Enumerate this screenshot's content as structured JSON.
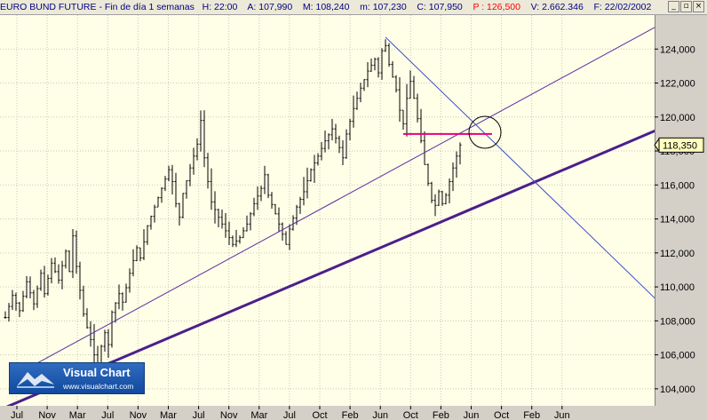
{
  "header": {
    "instrument": "EURO BUND FUTURE",
    "period": "Fin de día 1 semanas",
    "h": "H: 22:00",
    "a": "A: 107,990",
    "m": "M: 108,240",
    "mn": "m: 107,230",
    "c": "C: 107,950",
    "p": "P : 126,500",
    "v": "V: 2.662.346",
    "f": "F: 22/02/2002",
    "colors": {
      "label": "#000080",
      "p": "#ff0000"
    }
  },
  "window_buttons": {
    "minimize": "_",
    "restore": "▫",
    "close": "×"
  },
  "logo": {
    "title": "Visual Chart",
    "url": "www.visualchart.com"
  },
  "chart_data": {
    "type": "bar",
    "style": "ohlc",
    "ylim": [
      103000,
      126000
    ],
    "y_ticks": [
      "104,000",
      "106,000",
      "108,000",
      "110,000",
      "112,000",
      "114,000",
      "116,000",
      "118,000",
      "120,000",
      "122,000",
      "124,000"
    ],
    "y_tick_values": [
      104000,
      106000,
      108000,
      110000,
      112000,
      114000,
      116000,
      118000,
      120000,
      122000,
      124000
    ],
    "x_ticks": [
      "Jul",
      "Nov",
      "Mar",
      "Jul",
      "Nov",
      "Mar",
      "Jul",
      "Nov",
      "Mar",
      "Jul",
      "Oct",
      "Feb",
      "Jun",
      "Oct",
      "Feb",
      "Jun",
      "Oct",
      "Feb",
      "Jun"
    ],
    "last_price": "118,350",
    "last_price_value": 118350,
    "grid": true,
    "price_path": [
      [
        0,
        108200
      ],
      [
        2,
        109500
      ],
      [
        4,
        108600
      ],
      [
        6,
        110300
      ],
      [
        8,
        109000
      ],
      [
        10,
        110800
      ],
      [
        11,
        109600
      ],
      [
        13,
        111400
      ],
      [
        15,
        110400
      ],
      [
        17,
        112100
      ],
      [
        18,
        110900
      ],
      [
        19,
        113000
      ],
      [
        20,
        111200
      ],
      [
        21,
        109800
      ],
      [
        22,
        108400
      ],
      [
        23,
        107600
      ],
      [
        24,
        106900
      ],
      [
        25,
        106000
      ],
      [
        26,
        105500
      ],
      [
        27,
        106500
      ],
      [
        28,
        107300
      ],
      [
        29,
        106600
      ],
      [
        30,
        108500
      ],
      [
        32,
        109600
      ],
      [
        33,
        109100
      ],
      [
        35,
        110800
      ],
      [
        37,
        112300
      ],
      [
        38,
        111700
      ],
      [
        40,
        113600
      ],
      [
        42,
        114700
      ],
      [
        44,
        115800
      ],
      [
        46,
        116900
      ],
      [
        47,
        116200
      ],
      [
        48,
        114900
      ],
      [
        49,
        114100
      ],
      [
        50,
        115500
      ],
      [
        52,
        117000
      ],
      [
        54,
        118400
      ],
      [
        55,
        119800
      ],
      [
        56,
        117600
      ],
      [
        57,
        116200
      ],
      [
        58,
        115000
      ],
      [
        60,
        114100
      ],
      [
        62,
        113300
      ],
      [
        64,
        112500
      ],
      [
        66,
        112900
      ],
      [
        68,
        113700
      ],
      [
        70,
        114900
      ],
      [
        72,
        115800
      ],
      [
        73,
        116600
      ],
      [
        74,
        115400
      ],
      [
        76,
        114300
      ],
      [
        78,
        113100
      ],
      [
        79,
        112500
      ],
      [
        80,
        113400
      ],
      [
        82,
        114700
      ],
      [
        84,
        115600
      ],
      [
        86,
        116900
      ],
      [
        88,
        117700
      ],
      [
        90,
        118600
      ],
      [
        92,
        119300
      ],
      [
        94,
        118200
      ],
      [
        95,
        117600
      ],
      [
        96,
        119000
      ],
      [
        98,
        120500
      ],
      [
        100,
        121700
      ],
      [
        102,
        122700
      ],
      [
        104,
        123400
      ],
      [
        105,
        122600
      ],
      [
        106,
        123900
      ],
      [
        107,
        124200
      ],
      [
        108,
        123100
      ],
      [
        110,
        121600
      ],
      [
        111,
        120400
      ],
      [
        112,
        119600
      ],
      [
        113,
        121100
      ],
      [
        114,
        122100
      ],
      [
        115,
        121100
      ],
      [
        116,
        119900
      ],
      [
        117,
        118600
      ],
      [
        118,
        117200
      ],
      [
        119,
        116100
      ],
      [
        120,
        115100
      ],
      [
        121,
        114800
      ],
      [
        122,
        115600
      ],
      [
        123,
        114900
      ],
      [
        124,
        115400
      ],
      [
        125,
        116200
      ],
      [
        126,
        117000
      ],
      [
        127,
        117700
      ],
      [
        128,
        118350
      ]
    ],
    "bar_count": 129,
    "trendlines": [
      {
        "name": "support-line-thick",
        "from": [
          0,
          102900
        ],
        "to": [
          183,
          119200
        ],
        "color": "#4b1f8c",
        "width": 3
      },
      {
        "name": "support-line-thin",
        "from": [
          8,
          105400
        ],
        "to": [
          183,
          125300
        ],
        "color": "#5a2ca0",
        "width": 1
      },
      {
        "name": "downtrend-line",
        "from": [
          107,
          124700
        ],
        "to": [
          183,
          109300
        ],
        "color": "#3c50c8",
        "width": 1
      },
      {
        "name": "resistance-level",
        "from": [
          112,
          119000
        ],
        "to": [
          137,
          119000
        ],
        "color": "#e6007e",
        "width": 2
      }
    ],
    "highlight_circle": {
      "x": 135,
      "y": 119100,
      "color": "#000000"
    }
  }
}
